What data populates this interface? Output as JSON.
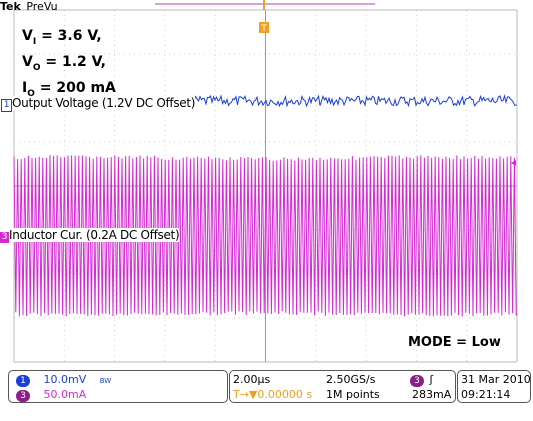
{
  "header": {
    "brand": "Tek",
    "mode": "PreVu"
  },
  "conditions": {
    "vi": {
      "sym": "V",
      "sub": "I",
      "val": " = 3.6 V,"
    },
    "vo": {
      "sym": "V",
      "sub": "O",
      "val": " = 1.2 V,"
    },
    "io": {
      "sym": "I",
      "sub": "O",
      "val": " = 200 mA"
    }
  },
  "mode_note": "MODE = Low",
  "channels": {
    "ch1": {
      "number": "1",
      "label": "Output Voltage (1.2V DC Offset)",
      "scale": "10.0mV",
      "bw": "BW",
      "color": "#1a3fd6"
    },
    "ch3": {
      "number": "3",
      "label": "Inductor Cur. (0.2A DC Offset)",
      "scale": "50.0mA",
      "color": "#d42ad4"
    }
  },
  "trigger": {
    "marker": "T",
    "channel": "3",
    "slope": "ʃ",
    "level": "283mA"
  },
  "timebase": {
    "scale": "2.00µs",
    "position_icon": "T→▼",
    "position": "0.00000 s"
  },
  "acquisition": {
    "rate": "2.50GS/s",
    "points": "1M points"
  },
  "datetime": {
    "date": "31 Mar  2010",
    "time": "09:21:14"
  },
  "colors": {
    "grid": "#d0d0d0",
    "trigger": "#f0a020",
    "background": "#ffffff"
  }
}
